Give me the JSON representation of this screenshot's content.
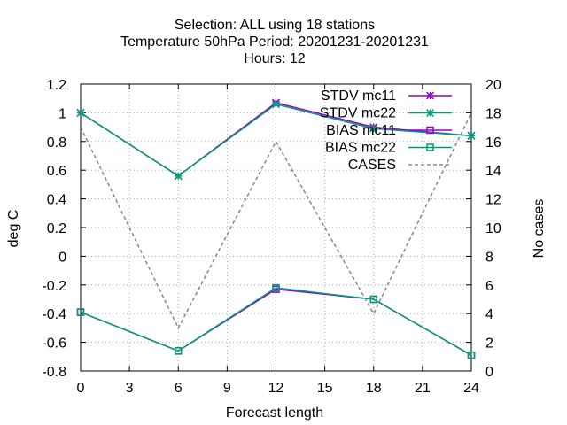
{
  "chart_data": {
    "type": "line",
    "title_lines": [
      "Selection: ALL using    18 stations",
      "Temperature 50hPa   Period: 20201231-20201231",
      "Hours:  12"
    ],
    "xlabel": "Forecast length",
    "ylabel": "deg C",
    "y2label": "No cases",
    "xlim": [
      0,
      24
    ],
    "ylim": [
      -0.8,
      1.2
    ],
    "y2lim": [
      0,
      20
    ],
    "xticks": [
      0,
      3,
      6,
      9,
      12,
      15,
      18,
      21,
      24
    ],
    "yticks": [
      -0.8,
      -0.6,
      -0.4,
      -0.2,
      0,
      0.2,
      0.4,
      0.6,
      0.8,
      1,
      1.2
    ],
    "yticklabels": [
      "-0.8",
      "-0.6",
      "-0.4",
      "-0.2",
      "0",
      "0.2",
      "0.4",
      "0.6",
      "0.8",
      "1",
      "1.2"
    ],
    "y2ticks": [
      0,
      2,
      4,
      6,
      8,
      10,
      12,
      14,
      16,
      18,
      20
    ],
    "grid": true,
    "legend_position": "top-right",
    "series": [
      {
        "name": "STDV mc11",
        "axis": "y",
        "color": "#9400d3",
        "marker": "x-star",
        "dash": false,
        "x": [
          0,
          6,
          12,
          18,
          24
        ],
        "values": [
          1.0,
          0.56,
          1.07,
          0.9,
          0.84
        ]
      },
      {
        "name": "STDV mc22",
        "axis": "y",
        "color": "#009e73",
        "marker": "x-star",
        "dash": false,
        "x": [
          0,
          6,
          12,
          18,
          24
        ],
        "values": [
          1.0,
          0.56,
          1.06,
          0.89,
          0.84
        ]
      },
      {
        "name": "BIAS mc11",
        "axis": "y",
        "color": "#9400d3",
        "marker": "square",
        "dash": false,
        "x": [
          0,
          6,
          12,
          18,
          24
        ],
        "values": [
          -0.39,
          -0.66,
          -0.23,
          -0.3,
          -0.69
        ]
      },
      {
        "name": "BIAS mc22",
        "axis": "y",
        "color": "#009e73",
        "marker": "square",
        "dash": false,
        "x": [
          0,
          6,
          12,
          18,
          24
        ],
        "values": [
          -0.39,
          -0.66,
          -0.22,
          -0.3,
          -0.69
        ]
      },
      {
        "name": "CASES",
        "axis": "y2",
        "color": "#888888",
        "marker": "none",
        "dash": true,
        "x": [
          0,
          6,
          12,
          18,
          24
        ],
        "values": [
          17,
          3,
          16,
          4,
          18
        ]
      }
    ]
  }
}
